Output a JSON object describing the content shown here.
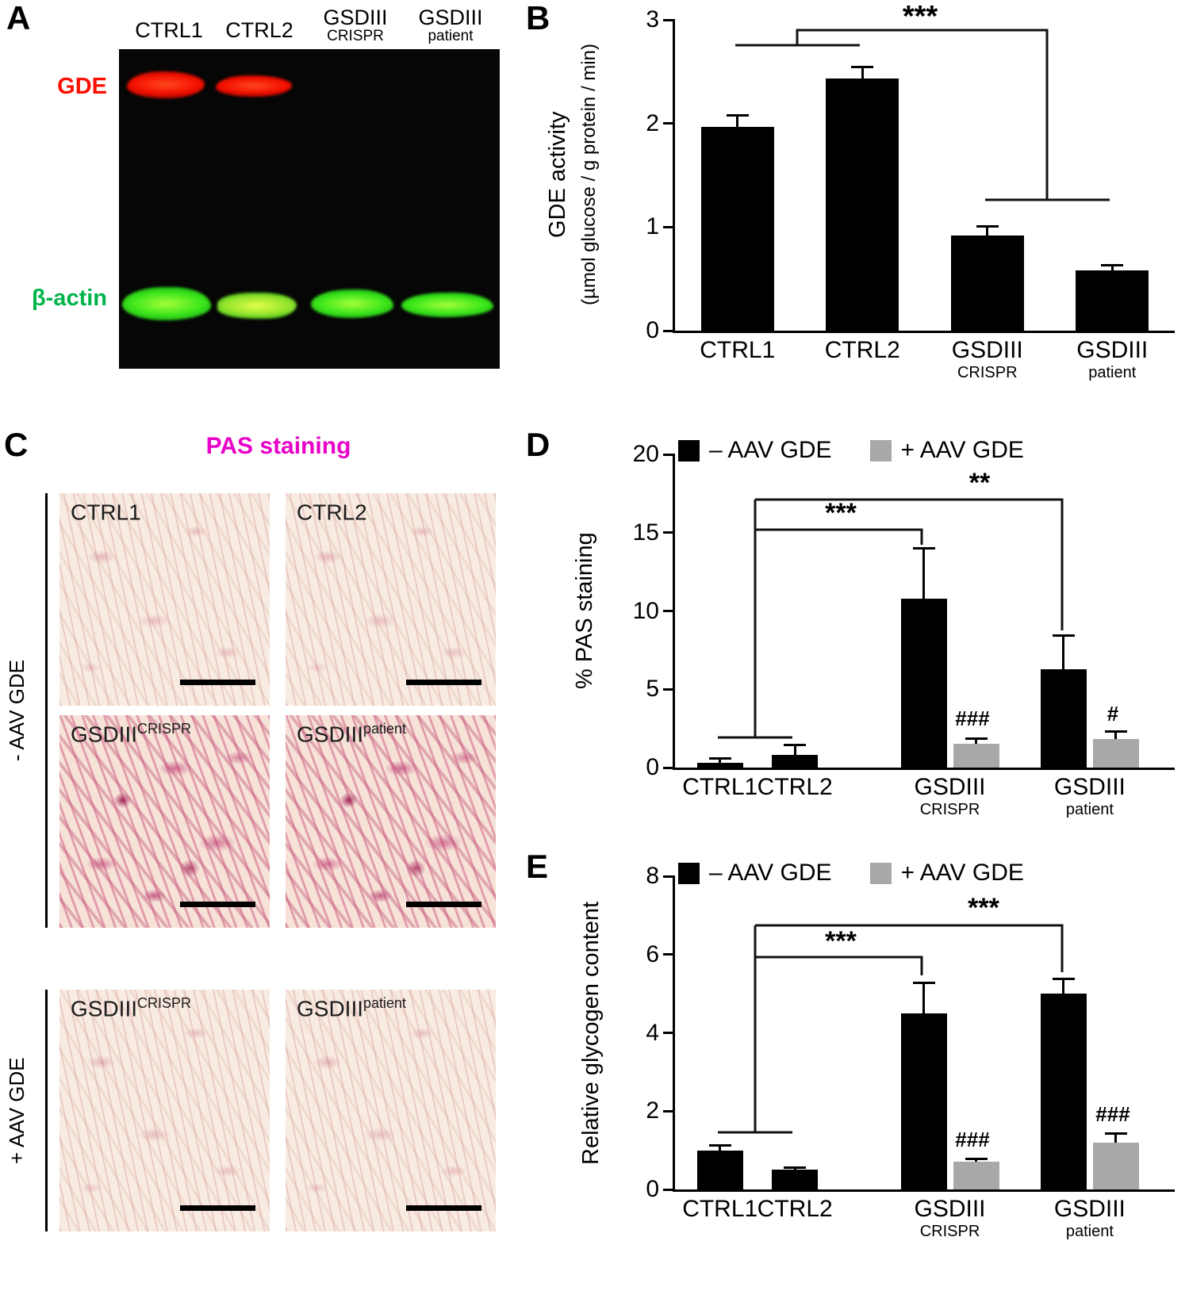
{
  "panels": {
    "a": "A",
    "b": "B",
    "c": "C",
    "d": "D",
    "e": "E"
  },
  "panel_a": {
    "lanes": [
      {
        "line1": "CTRL1",
        "line2": ""
      },
      {
        "line1": "CTRL2",
        "line2": ""
      },
      {
        "line1": "GSDIII",
        "line2": "CRISPR"
      },
      {
        "line1": "GSDIII",
        "line2": "patient"
      }
    ],
    "row_labels": [
      {
        "text": "GDE",
        "color": "#fb0f00"
      },
      {
        "text": "β-actin",
        "color": "#00b44a"
      }
    ]
  },
  "panel_c": {
    "title": "PAS staining",
    "title_color": "#e800c8",
    "group_minus": "- AAV GDE",
    "group_plus": "+ AAV GDE",
    "images": [
      {
        "label": "CTRL1",
        "sup": ""
      },
      {
        "label": "CTRL2",
        "sup": ""
      },
      {
        "label": "GSDIII",
        "sup": "CRISPR"
      },
      {
        "label": "GSDIII",
        "sup": "patient"
      },
      {
        "label": "GSDIII",
        "sup": "CRISPR"
      },
      {
        "label": "GSDIII",
        "sup": "patient"
      }
    ]
  },
  "chart_data": [
    {
      "id": "chartB",
      "type": "bar",
      "ylabel_line1": "GDE activity",
      "ylabel_line2": "(µmol glucose / g protein / min)",
      "ylim": [
        0,
        3
      ],
      "yticks": [
        0,
        1,
        2,
        3
      ],
      "grid": false,
      "categories": [
        {
          "label": "CTRL1",
          "sub": ""
        },
        {
          "label": "CTRL2",
          "sub": ""
        },
        {
          "label": "GSDIII",
          "sub": "CRISPR"
        },
        {
          "label": "GSDIII",
          "sub": "patient"
        }
      ],
      "series": [
        {
          "name": "GDE activity",
          "color": "#000000",
          "values": [
            1.97,
            2.43,
            0.92,
            0.58
          ],
          "errors": [
            0.12,
            0.13,
            0.1,
            0.06
          ]
        }
      ],
      "significance": [
        {
          "text": "***"
        }
      ]
    },
    {
      "id": "chartD",
      "type": "bar",
      "ylabel": "% PAS staining",
      "ylim": [
        0,
        20
      ],
      "yticks": [
        0,
        5,
        10,
        15,
        20
      ],
      "grid": false,
      "legend_position": "top",
      "categories": [
        {
          "label": "CTRL1",
          "sub": ""
        },
        {
          "label": "CTRL2",
          "sub": ""
        },
        {
          "label": "GSDIII",
          "sub": "CRISPR"
        },
        {
          "label": "GSDIII",
          "sub": "patient"
        }
      ],
      "series": [
        {
          "name": "– AAV GDE",
          "color": "#000000",
          "values": [
            0.3,
            0.8,
            10.8,
            6.3
          ],
          "errors": [
            0.35,
            0.7,
            3.3,
            2.2
          ]
        },
        {
          "name": "+ AAV GDE",
          "color": "#a8a8a8",
          "values": [
            null,
            null,
            1.5,
            1.8
          ],
          "errors": [
            null,
            null,
            0.4,
            0.6
          ]
        }
      ],
      "significance": [
        {
          "text": "***"
        },
        {
          "text": "**"
        },
        {
          "text": "###"
        },
        {
          "text": "#"
        }
      ]
    },
    {
      "id": "chartE",
      "type": "bar",
      "ylabel": "Relative glycogen content",
      "ylim": [
        0,
        8
      ],
      "yticks": [
        0,
        2,
        4,
        6,
        8
      ],
      "grid": false,
      "legend_position": "top",
      "categories": [
        {
          "label": "CTRL1",
          "sub": ""
        },
        {
          "label": "CTRL2",
          "sub": ""
        },
        {
          "label": "GSDIII",
          "sub": "CRISPR"
        },
        {
          "label": "GSDIII",
          "sub": "patient"
        }
      ],
      "series": [
        {
          "name": "– AAV GDE",
          "color": "#000000",
          "values": [
            1.0,
            0.5,
            4.5,
            5.0
          ],
          "errors": [
            0.15,
            0.08,
            0.8,
            0.4
          ]
        },
        {
          "name": "+ AAV GDE",
          "color": "#a8a8a8",
          "values": [
            null,
            null,
            0.7,
            1.2
          ],
          "errors": [
            null,
            null,
            0.12,
            0.25
          ]
        }
      ],
      "significance": [
        {
          "text": "***"
        },
        {
          "text": "***"
        },
        {
          "text": "###"
        },
        {
          "text": "###"
        }
      ]
    }
  ]
}
